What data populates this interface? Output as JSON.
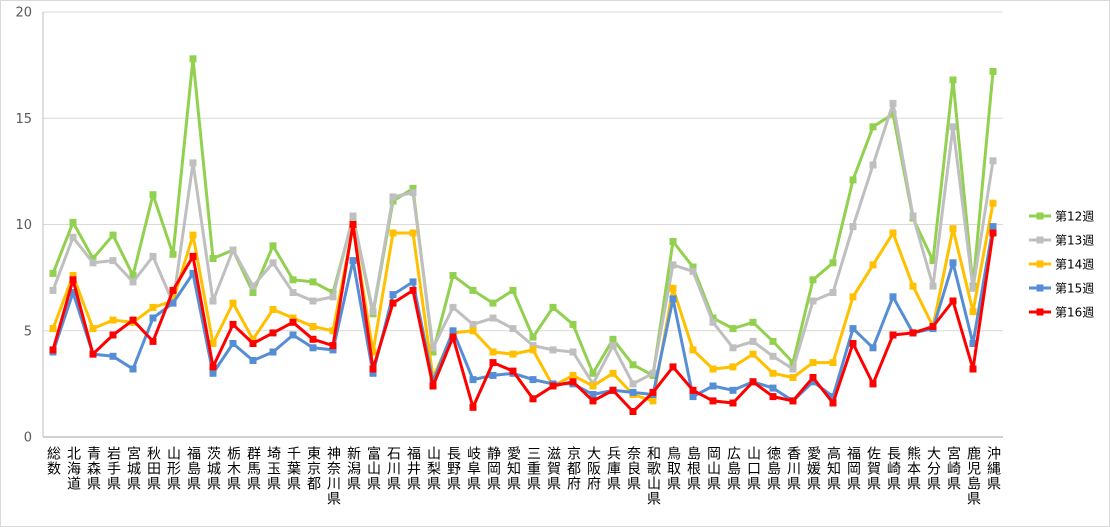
{
  "chart_data": {
    "type": "line",
    "categories": [
      "総数",
      "北海道",
      "青森県",
      "岩手県",
      "宮城県",
      "秋田県",
      "山形県",
      "福島県",
      "茨城県",
      "栃木県",
      "群馬県",
      "埼玉県",
      "千葉県",
      "東京都",
      "神奈川県",
      "新潟県",
      "富山県",
      "石川県",
      "福井県",
      "山梨県",
      "長野県",
      "岐阜県",
      "静岡県",
      "愛知県",
      "三重県",
      "滋賀県",
      "京都府",
      "大阪府",
      "兵庫県",
      "奈良県",
      "和歌山県",
      "鳥取県",
      "島根県",
      "岡山県",
      "広島県",
      "山口県",
      "徳島県",
      "香川県",
      "愛媛県",
      "高知県",
      "福岡県",
      "佐賀県",
      "長崎県",
      "熊本県",
      "大分県",
      "宮崎県",
      "鹿児島県",
      "沖縄県"
    ],
    "series": [
      {
        "name": "第12週",
        "color": "#92D050",
        "values": [
          7.7,
          10.1,
          8.4,
          9.5,
          7.6,
          11.4,
          8.6,
          17.8,
          8.4,
          8.8,
          6.8,
          9.0,
          7.4,
          7.3,
          6.8,
          10.3,
          5.8,
          11.1,
          11.7,
          4.0,
          7.6,
          6.9,
          6.3,
          6.9,
          4.7,
          6.1,
          5.3,
          3.0,
          4.6,
          3.4,
          2.9,
          9.2,
          8.0,
          5.6,
          5.1,
          5.4,
          4.5,
          3.5,
          7.4,
          8.2,
          12.1,
          14.6,
          15.2,
          10.3,
          8.3,
          16.8,
          7.1,
          17.2
        ]
      },
      {
        "name": "第13週",
        "color": "#BFBFBF",
        "values": [
          6.9,
          9.4,
          8.2,
          8.3,
          7.3,
          8.5,
          6.3,
          12.9,
          6.4,
          8.8,
          7.1,
          8.2,
          6.8,
          6.4,
          6.6,
          10.4,
          5.9,
          11.3,
          11.5,
          4.2,
          6.1,
          5.3,
          5.6,
          5.1,
          4.3,
          4.1,
          4.0,
          2.5,
          4.3,
          2.5,
          3.0,
          8.1,
          7.8,
          5.4,
          4.2,
          4.5,
          3.8,
          3.2,
          6.4,
          6.8,
          9.9,
          12.8,
          15.7,
          10.4,
          7.1,
          14.6,
          7.0,
          13.0
        ]
      },
      {
        "name": "第14週",
        "color": "#FFC000",
        "values": [
          5.1,
          7.6,
          5.1,
          5.5,
          5.4,
          6.1,
          6.4,
          9.5,
          4.4,
          6.3,
          4.6,
          6.0,
          5.6,
          5.2,
          5.0,
          9.9,
          4.0,
          9.6,
          9.6,
          2.8,
          4.9,
          5.0,
          4.0,
          3.9,
          4.1,
          2.4,
          2.9,
          2.4,
          3.0,
          2.0,
          1.7,
          7.0,
          4.1,
          3.2,
          3.3,
          3.9,
          3.0,
          2.8,
          3.5,
          3.5,
          6.6,
          8.1,
          9.6,
          7.1,
          5.2,
          9.8,
          5.9,
          11.0
        ]
      },
      {
        "name": "第15週",
        "color": "#558ED5",
        "values": [
          4.0,
          6.8,
          3.9,
          3.8,
          3.2,
          5.6,
          6.3,
          7.7,
          3.0,
          4.4,
          3.6,
          4.0,
          4.8,
          4.2,
          4.1,
          8.3,
          3.0,
          6.7,
          7.3,
          2.6,
          5.0,
          2.7,
          2.9,
          3.0,
          2.7,
          2.5,
          2.5,
          2.0,
          2.2,
          2.1,
          2.0,
          6.5,
          1.9,
          2.4,
          2.2,
          2.6,
          2.3,
          1.7,
          2.6,
          1.9,
          5.1,
          4.2,
          6.6,
          4.9,
          5.1,
          8.2,
          4.4,
          9.9
        ]
      },
      {
        "name": "第16週",
        "color": "#FF0000",
        "values": [
          4.1,
          7.4,
          3.9,
          4.8,
          5.5,
          4.5,
          6.9,
          8.5,
          3.3,
          5.3,
          4.4,
          4.9,
          5.4,
          4.6,
          4.3,
          10.0,
          3.2,
          6.3,
          6.9,
          2.4,
          4.7,
          1.4,
          3.5,
          3.1,
          1.8,
          2.4,
          2.6,
          1.7,
          2.2,
          1.2,
          2.1,
          3.3,
          2.2,
          1.7,
          1.6,
          2.6,
          1.9,
          1.7,
          2.8,
          1.6,
          4.4,
          2.5,
          4.8,
          4.9,
          5.2,
          6.4,
          3.2,
          9.6
        ]
      }
    ],
    "ylim": [
      0,
      20
    ],
    "yticks": [
      0,
      5,
      10,
      15,
      20
    ],
    "grid": true,
    "legend": "right"
  }
}
